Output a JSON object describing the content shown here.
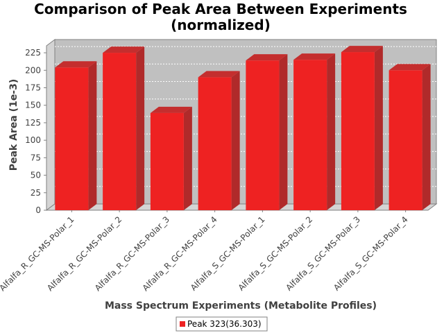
{
  "chart_data": {
    "type": "bar",
    "title": [
      "Comparison of Peak Area Between Experiments",
      "(normalized)"
    ],
    "xlabel": "Mass Spectrum Experiments (Metabolite Profiles)",
    "ylabel": "Peak Area (1e-3)",
    "ylim": [
      0,
      235
    ],
    "yticks": [
      0,
      25,
      50,
      75,
      100,
      125,
      150,
      175,
      200,
      225
    ],
    "categories": [
      "Alfalfa_R_GC-MS-Polar_1",
      "Alfalfa_R_GC-MS-Polar_2",
      "Alfalfa_R_GC-MS-Polar_3",
      "Alfalfa_R_GC-MS-Polar_4",
      "Alfalfa_S_GC-MS-Polar_1",
      "Alfalfa_S_GC-MS-Polar_2",
      "Alfalfa_S_GC-MS-Polar_3",
      "Alfalfa_S_GC-MS-Polar_4"
    ],
    "series": [
      {
        "name": "Peak 323(36.303)",
        "color": "#ee2222",
        "values": [
          204,
          225,
          139,
          190,
          214,
          215,
          226,
          200
        ]
      }
    ],
    "grid": true,
    "legend_position": "bottom",
    "plot_background": "#c0c0c0"
  }
}
